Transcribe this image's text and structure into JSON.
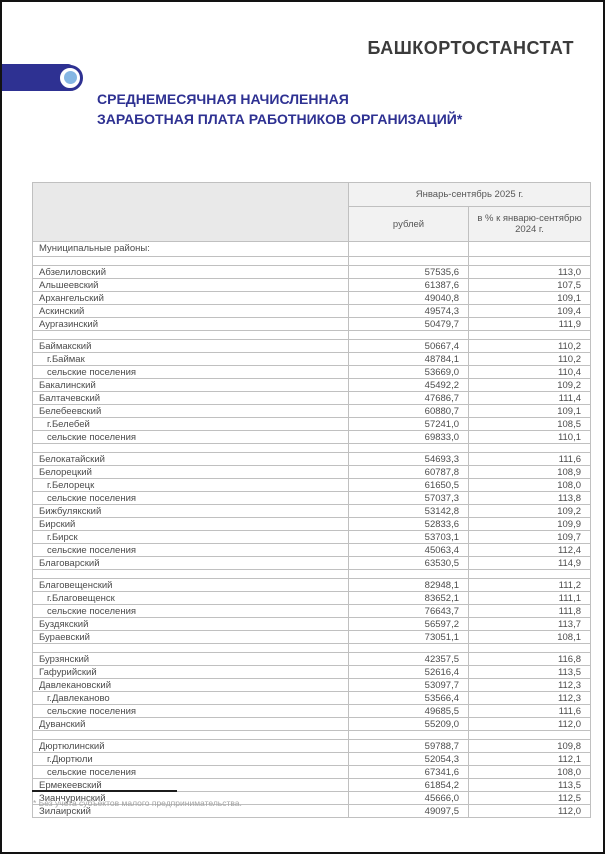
{
  "header": {
    "brand": "БАШКОРТОСТАНСТАТ",
    "title_line1": "СРЕДНЕМЕСЯЧНАЯ НАЧИСЛЕННАЯ",
    "title_line2": "ЗАРАБОТНАЯ ПЛАТА РАБОТНИКОВ ОРГАНИЗАЦИЙ*"
  },
  "colors": {
    "accent": "#2e3192",
    "logo_dot": "#85b6e3",
    "table_border": "#c0c0c0",
    "table_text": "#4c4c4c",
    "header_bg": "#e9e9e9"
  },
  "footnote": "* Без учета субъектов малого предпринимательства.",
  "table": {
    "period_header": "Январь-сентябрь 2025 г.",
    "col_rub": "рублей",
    "col_pct": "в % к январю-сентябрю 2024 г.",
    "rows": [
      {
        "t": "section",
        "label": "Муниципальные районы:"
      },
      {
        "t": "blank"
      },
      {
        "t": "d",
        "label": "Абзелиловский",
        "rub": "57535,6",
        "pct": "113,0"
      },
      {
        "t": "d",
        "label": "Альшеевский",
        "rub": "61387,6",
        "pct": "107,5"
      },
      {
        "t": "d",
        "label": "Архангельский",
        "rub": "49040,8",
        "pct": "109,1"
      },
      {
        "t": "d",
        "label": "Аскинский",
        "rub": "49574,3",
        "pct": "109,4"
      },
      {
        "t": "d",
        "label": "Аургазинский",
        "rub": "50479,7",
        "pct": "111,9"
      },
      {
        "t": "blank"
      },
      {
        "t": "d",
        "label": "Баймакский",
        "rub": "50667,4",
        "pct": "110,2"
      },
      {
        "t": "d",
        "label": "г.Баймак",
        "rub": "48784,1",
        "pct": "110,2",
        "sub": true
      },
      {
        "t": "d",
        "label": "сельские поселения",
        "rub": "53669,0",
        "pct": "110,4",
        "sub": true
      },
      {
        "t": "d",
        "label": "Бакалинский",
        "rub": "45492,2",
        "pct": "109,2"
      },
      {
        "t": "d",
        "label": "Балтачевский",
        "rub": "47686,7",
        "pct": "111,4"
      },
      {
        "t": "d",
        "label": "Белебеевский",
        "rub": "60880,7",
        "pct": "109,1"
      },
      {
        "t": "d",
        "label": "г.Белебей",
        "rub": "57241,0",
        "pct": "108,5",
        "sub": true
      },
      {
        "t": "d",
        "label": "сельские поселения",
        "rub": "69833,0",
        "pct": "110,1",
        "sub": true
      },
      {
        "t": "blank"
      },
      {
        "t": "d",
        "label": "Белокатайский",
        "rub": "54693,3",
        "pct": "111,6"
      },
      {
        "t": "d",
        "label": "Белорецкий",
        "rub": "60787,8",
        "pct": "108,9"
      },
      {
        "t": "d",
        "label": "г.Белорецк",
        "rub": "61650,5",
        "pct": "108,0",
        "sub": true
      },
      {
        "t": "d",
        "label": "сельские поселения",
        "rub": "57037,3",
        "pct": "113,8",
        "sub": true
      },
      {
        "t": "d",
        "label": "Бижбулякский",
        "rub": "53142,8",
        "pct": "109,2"
      },
      {
        "t": "d",
        "label": "Бирский",
        "rub": "52833,6",
        "pct": "109,9"
      },
      {
        "t": "d",
        "label": "г.Бирск",
        "rub": "53703,1",
        "pct": "109,7",
        "sub": true
      },
      {
        "t": "d",
        "label": "сельские поселения",
        "rub": "45063,4",
        "pct": "112,4",
        "sub": true
      },
      {
        "t": "d",
        "label": "Благоварский",
        "rub": "63530,5",
        "pct": "114,9"
      },
      {
        "t": "blank"
      },
      {
        "t": "d",
        "label": "Благовещенский",
        "rub": "82948,1",
        "pct": "111,2"
      },
      {
        "t": "d",
        "label": "г.Благовещенск",
        "rub": "83652,1",
        "pct": "111,1",
        "sub": true
      },
      {
        "t": "d",
        "label": "сельские поселения",
        "rub": "76643,7",
        "pct": "111,8",
        "sub": true
      },
      {
        "t": "d",
        "label": "Буздякский",
        "rub": "56597,2",
        "pct": "113,7"
      },
      {
        "t": "d",
        "label": "Бураевский",
        "rub": "73051,1",
        "pct": "108,1"
      },
      {
        "t": "blank"
      },
      {
        "t": "d",
        "label": "Бурзянский",
        "rub": "42357,5",
        "pct": "116,8"
      },
      {
        "t": "d",
        "label": "Гафурийский",
        "rub": "52616,4",
        "pct": "113,5"
      },
      {
        "t": "d",
        "label": "Давлекановский",
        "rub": "53097,7",
        "pct": "112,3"
      },
      {
        "t": "d",
        "label": "г.Давлеканово",
        "rub": "53566,4",
        "pct": "112,3",
        "sub": true
      },
      {
        "t": "d",
        "label": "сельские поселения",
        "rub": "49685,5",
        "pct": "111,6",
        "sub": true
      },
      {
        "t": "d",
        "label": "Дуванский",
        "rub": "55209,0",
        "pct": "112,0"
      },
      {
        "t": "blank"
      },
      {
        "t": "d",
        "label": "Дюртюлинский",
        "rub": "59788,7",
        "pct": "109,8"
      },
      {
        "t": "d",
        "label": "г.Дюртюли",
        "rub": "52054,3",
        "pct": "112,1",
        "sub": true
      },
      {
        "t": "d",
        "label": "сельские поселения",
        "rub": "67341,6",
        "pct": "108,0",
        "sub": true
      },
      {
        "t": "d",
        "label": "Ермекеевский",
        "rub": "61854,2",
        "pct": "113,5"
      },
      {
        "t": "d",
        "label": "Зианчуринский",
        "rub": "45666,0",
        "pct": "112,5"
      },
      {
        "t": "d",
        "label": "Зилаирский",
        "rub": "49097,5",
        "pct": "112,0"
      }
    ]
  }
}
